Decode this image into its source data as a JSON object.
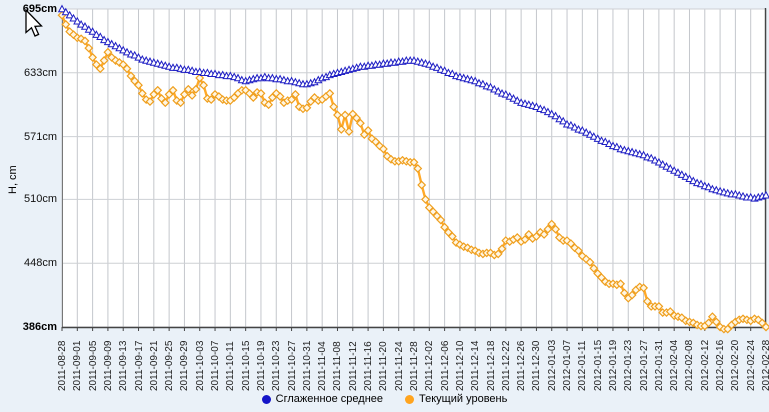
{
  "chart_data": {
    "type": "line",
    "title": "",
    "ylabel": "H, cm",
    "y_ticks": [
      695,
      633,
      571,
      510,
      448,
      386
    ],
    "y_tick_labels": [
      "695cm",
      "633cm",
      "571cm",
      "510cm",
      "448cm",
      "386cm"
    ],
    "ylim": [
      386,
      695
    ],
    "x_range": [
      "2011-08-28",
      "2012-02-28"
    ],
    "x_points_interval": "daily",
    "grid": true,
    "legend_position": "bottom",
    "x_tick_labels": [
      "2011-08-28",
      "2011-09-01",
      "2011-09-05",
      "2011-09-09",
      "2011-09-13",
      "2011-09-17",
      "2011-09-21",
      "2011-09-25",
      "2011-09-29",
      "2011-10-03",
      "2011-10-07",
      "2011-10-11",
      "2011-10-15",
      "2011-10-19",
      "2011-10-23",
      "2011-10-27",
      "2011-10-31",
      "2011-11-04",
      "2011-11-08",
      "2011-11-12",
      "2011-11-16",
      "2011-11-20",
      "2011-11-24",
      "2011-11-28",
      "2011-12-02",
      "2011-12-06",
      "2011-12-10",
      "2011-12-14",
      "2011-12-18",
      "2011-12-22",
      "2011-12-26",
      "2011-12-30",
      "2012-01-03",
      "2012-01-07",
      "2012-01-11",
      "2012-01-15",
      "2012-01-19",
      "2012-01-23",
      "2012-01-27",
      "2012-01-31",
      "2012-02-04",
      "2012-02-08",
      "2012-02-12",
      "2012-02-16",
      "2012-02-20",
      "2012-02-24",
      "2012-02-28"
    ],
    "series": [
      {
        "name": "Сглаженное среднее",
        "color": "#1f1fc4",
        "marker": "triangle",
        "marker_fill": "#ffffff",
        "values": [
          695,
          692,
          689,
          686,
          683,
          680,
          678,
          675,
          673,
          670,
          668,
          665,
          663,
          661,
          659,
          657,
          655,
          653,
          651,
          650,
          648,
          646,
          645,
          644,
          643,
          642,
          641,
          640,
          639,
          638,
          638,
          637,
          636,
          636,
          635,
          634,
          634,
          633,
          633,
          632,
          632,
          631,
          631,
          630,
          630,
          629,
          628,
          626,
          625,
          626,
          627,
          628,
          628,
          629,
          628,
          628,
          627,
          627,
          626,
          625,
          625,
          624,
          623,
          622,
          622,
          623,
          624,
          626,
          628,
          629,
          631,
          632,
          633,
          634,
          635,
          636,
          637,
          638,
          639,
          639,
          640,
          640,
          641,
          641,
          642,
          642,
          643,
          643,
          644,
          644,
          645,
          645,
          645,
          644,
          643,
          642,
          641,
          639,
          638,
          636,
          635,
          633,
          632,
          630,
          629,
          628,
          627,
          626,
          625,
          623,
          622,
          620,
          619,
          617,
          615,
          613,
          612,
          610,
          608,
          606,
          604,
          603,
          602,
          601,
          600,
          598,
          597,
          595,
          593,
          591,
          588,
          586,
          583,
          582,
          580,
          578,
          577,
          575,
          573,
          571,
          569,
          567,
          566,
          564,
          562,
          561,
          559,
          558,
          557,
          556,
          555,
          554,
          553,
          551,
          550,
          548,
          546,
          544,
          542,
          540,
          538,
          536,
          534,
          532,
          530,
          528,
          526,
          525,
          523,
          522,
          520,
          519,
          518,
          517,
          516,
          515,
          515,
          514,
          513,
          512,
          512,
          511,
          512,
          513,
          514
        ]
      },
      {
        "name": "Текущий уровень",
        "color": "#ffa928",
        "marker": "diamond",
        "marker_fill": "#fff6e3",
        "marker_stroke": "#ef9f1e",
        "values": [
          689,
          680,
          673,
          670,
          667,
          666,
          664,
          657,
          648,
          641,
          637,
          645,
          653,
          648,
          645,
          643,
          641,
          637,
          630,
          625,
          621,
          613,
          607,
          605,
          612,
          616,
          608,
          604,
          612,
          616,
          606,
          604,
          612,
          617,
          611,
          617,
          628,
          621,
          608,
          607,
          612,
          610,
          607,
          606,
          606,
          609,
          613,
          616,
          616,
          613,
          609,
          614,
          613,
          604,
          602,
          609,
          613,
          610,
          604,
          606,
          607,
          612,
          600,
          598,
          599,
          605,
          609,
          606,
          607,
          610,
          613,
          600,
          592,
          578,
          592,
          576,
          593,
          589,
          584,
          573,
          577,
          569,
          566,
          562,
          559,
          552,
          549,
          547,
          547,
          548,
          547,
          546,
          546,
          540,
          524,
          510,
          502,
          498,
          494,
          490,
          483,
          478,
          474,
          468,
          466,
          464,
          463,
          461,
          460,
          458,
          457,
          458,
          458,
          456,
          457,
          462,
          470,
          469,
          471,
          473,
          469,
          471,
          476,
          472,
          474,
          478,
          476,
          481,
          486,
          481,
          473,
          470,
          470,
          467,
          463,
          460,
          455,
          452,
          449,
          443,
          438,
          434,
          430,
          428,
          428,
          427,
          428,
          419,
          414,
          417,
          422,
          425,
          424,
          411,
          406,
          406,
          406,
          400,
          400,
          401,
          397,
          396,
          395,
          392,
          391,
          390,
          388,
          387,
          387,
          390,
          396,
          391,
          386,
          384,
          384,
          388,
          391,
          393,
          394,
          393,
          392,
          394,
          393,
          390,
          386
        ]
      }
    ]
  },
  "legend": {
    "items": [
      {
        "label": "Сглаженное среднее",
        "color": "#1414c8",
        "marker": "circle"
      },
      {
        "label": "Текущий уровень",
        "color": "#ffa41e",
        "marker": "circle"
      }
    ]
  },
  "cursor": {
    "type": "arrow"
  },
  "colors": {
    "page_bg": "#eaf1f8",
    "plot_bg": "#ffffff",
    "grid_vertical": "#c4c7cc",
    "grid_horizontal": "#cdd0d4",
    "axis_line": "#444444",
    "tick_label": "#222222"
  }
}
